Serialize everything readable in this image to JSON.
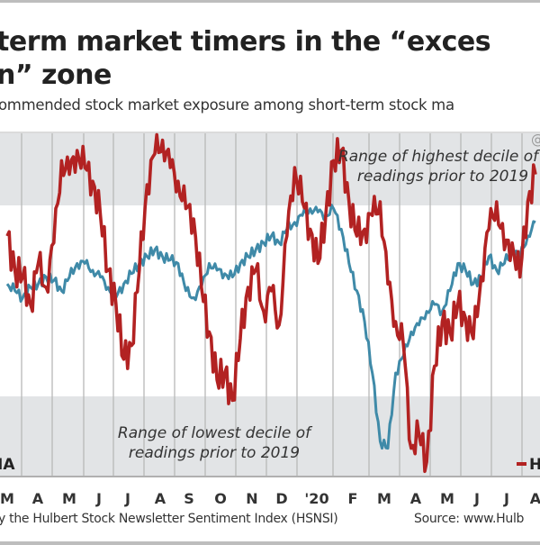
{
  "header": {
    "title_line1": "term market timers in the “exces",
    "title_line2": "n” zone",
    "subtitle": "ommended stock market exposure among short-term stock ma"
  },
  "footer": {
    "left": "y the Hulbert Stock Newsletter Sentiment Index (HSNSI)",
    "right": "Source: www.Hulb"
  },
  "colors": {
    "hsnsi": "#b22222",
    "dja": "#3f8aa8",
    "band": "#e2e4e6",
    "grid": "#b8b8b8"
  },
  "chart_data": {
    "type": "line",
    "title": "term market timers in the “exces n” zone",
    "subtitle": "ommended stock market exposure among short-term stock ma",
    "xlabel": "",
    "ylabel": "",
    "ylim": [
      0,
      100
    ],
    "y_units": "relative level (axis not shown)",
    "grid": "vertical month lines",
    "x_tick_labels": [
      "M",
      "A",
      "M",
      "J",
      "J",
      "A",
      "S",
      "O",
      "N",
      "D",
      "'20",
      "F",
      "M",
      "A",
      "M",
      "J",
      "J",
      "A"
    ],
    "bands": [
      {
        "name": "highest-decile",
        "label_line1": "Range of highest decile of",
        "label_line2": "readings prior to 2019",
        "range": [
          79,
          100
        ]
      },
      {
        "name": "lowest-decile",
        "label_line1": "Range of lowest decile of",
        "label_line2": "readings prior to 2019",
        "range": [
          0,
          23
        ]
      }
    ],
    "watermark": "@",
    "legend": [
      {
        "name": "DJIA",
        "visible_text": "IA",
        "position": "bottom-left"
      },
      {
        "name": "HSNSI",
        "visible_text": "H",
        "position": "bottom-right"
      }
    ],
    "x": [
      0,
      0.25,
      0.5,
      0.75,
      1,
      1.25,
      1.5,
      1.75,
      2,
      2.25,
      2.5,
      2.75,
      3,
      3.25,
      3.5,
      3.75,
      4,
      4.25,
      4.5,
      4.75,
      5,
      5.25,
      5.5,
      5.75,
      6,
      6.25,
      6.5,
      6.75,
      7,
      7.25,
      7.5,
      7.75,
      8,
      8.25,
      8.5,
      8.75,
      9,
      9.25,
      9.5,
      9.75,
      10,
      10.25,
      10.5,
      10.75,
      11,
      11.25,
      11.5,
      11.75,
      12,
      12.25,
      12.5,
      12.75,
      13,
      13.25,
      13.5,
      13.75,
      14,
      14.25,
      14.5,
      14.75,
      15,
      15.25,
      15.5,
      15.75,
      16,
      16.25,
      16.5,
      16.75,
      17
    ],
    "series": [
      {
        "name": "HSNSI",
        "values": [
          70,
          60,
          58,
          50,
          62,
          55,
          68,
          92,
          88,
          95,
          90,
          86,
          76,
          60,
          50,
          34,
          38,
          60,
          85,
          94,
          98,
          90,
          86,
          78,
          75,
          55,
          42,
          28,
          30,
          22,
          40,
          55,
          60,
          48,
          54,
          44,
          70,
          90,
          80,
          72,
          62,
          76,
          92,
          95,
          80,
          70,
          72,
          76,
          80,
          56,
          45,
          38,
          8,
          12,
          4,
          32,
          45,
          42,
          50,
          46,
          40,
          58,
          72,
          80,
          66,
          68,
          58,
          80,
          88
        ]
      },
      {
        "name": "DJIA",
        "values": [
          56,
          54,
          52,
          55,
          56,
          58,
          57,
          54,
          58,
          62,
          62,
          60,
          58,
          55,
          52,
          56,
          59,
          62,
          64,
          66,
          64,
          63,
          62,
          54,
          52,
          55,
          62,
          60,
          59,
          58,
          62,
          64,
          66,
          68,
          70,
          68,
          72,
          74,
          76,
          78,
          77,
          76,
          78,
          72,
          62,
          54,
          45,
          30,
          10,
          8,
          30,
          35,
          42,
          44,
          48,
          50,
          48,
          54,
          62,
          60,
          56,
          58,
          64,
          60,
          62,
          66,
          64,
          70,
          74
        ]
      }
    ]
  }
}
